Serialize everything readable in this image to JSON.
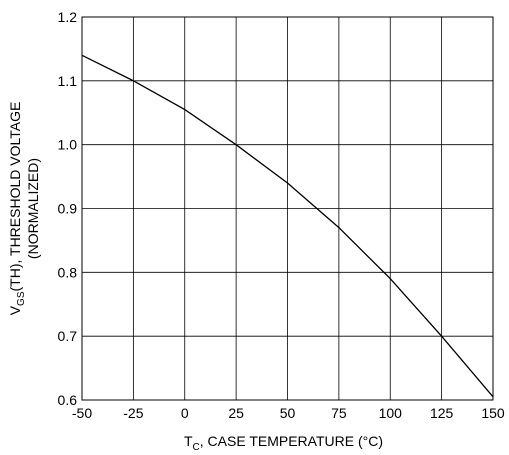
{
  "chart_data": {
    "type": "line",
    "xlabel": {
      "main": "T",
      "sub": "C",
      "rest": ", CASE TEMPERATURE (°C)"
    },
    "ylabel": {
      "line1_main": "V",
      "line1_sub": "GS",
      "line1_rest": "(TH), THRESHOLD VOLTAGE",
      "line2": "(NORMALIZED)"
    },
    "xlim": [
      -50,
      150
    ],
    "ylim": [
      0.6,
      1.2
    ],
    "xticks": [
      -50,
      -25,
      0,
      25,
      50,
      75,
      100,
      125,
      150
    ],
    "yticks": [
      0.6,
      0.7,
      0.8,
      0.9,
      1.0,
      1.1,
      1.2
    ],
    "xtick_labels": [
      "-50",
      "-25",
      "0",
      "25",
      "50",
      "75",
      "100",
      "125",
      "150"
    ],
    "ytick_labels": [
      "0.6",
      "0.7",
      "0.8",
      "0.9",
      "1.0",
      "1.1",
      "1.2"
    ],
    "grid": true,
    "series": [
      {
        "x": [
          -50,
          -25,
          0,
          25,
          50,
          75,
          100,
          125,
          150
        ],
        "y": [
          1.14,
          1.1,
          1.055,
          1.0,
          0.94,
          0.87,
          0.79,
          0.7,
          0.605
        ]
      }
    ]
  }
}
